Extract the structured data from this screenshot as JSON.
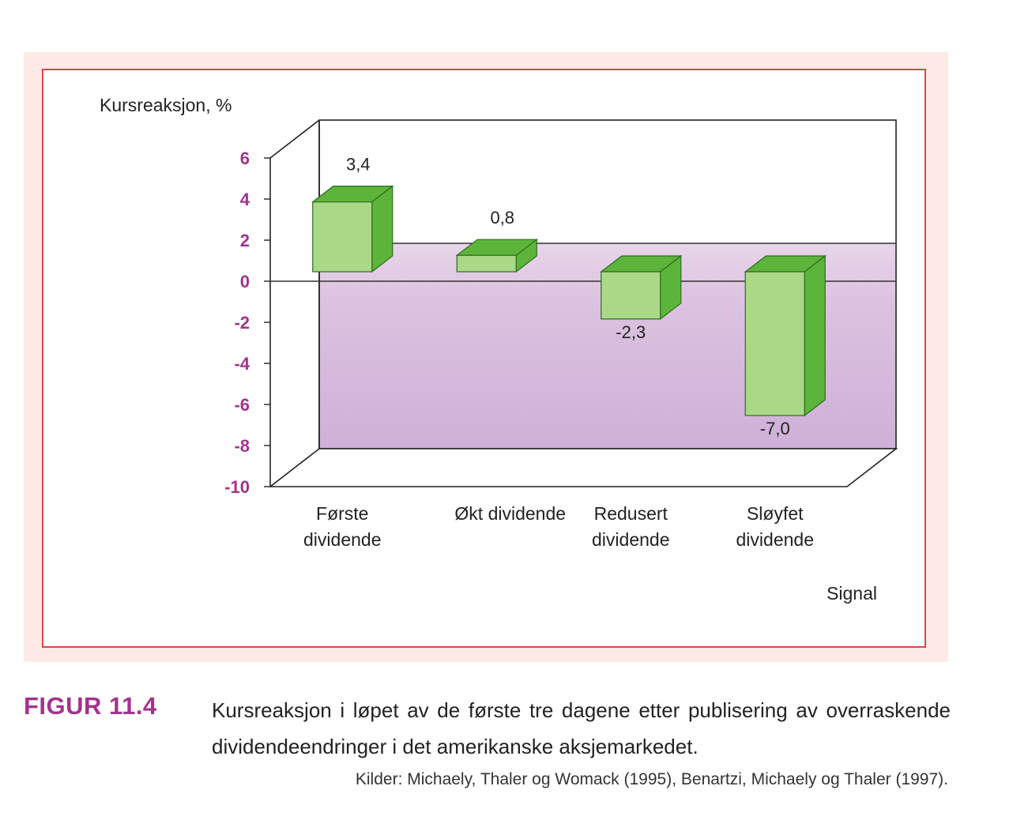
{
  "chart_data": {
    "type": "bar",
    "three_d": true,
    "ylabel": "Kursreaksjon, %",
    "xlabel": "Signal",
    "ylim": [
      -10,
      6
    ],
    "yticks": [
      6,
      4,
      2,
      0,
      -2,
      -4,
      -6,
      -8,
      -10
    ],
    "categories": [
      [
        "Første",
        "dividende"
      ],
      [
        "Økt dividende"
      ],
      [
        "Redusert",
        "dividende"
      ],
      [
        "Sløyfet",
        "dividende"
      ]
    ],
    "values": [
      3.4,
      0.8,
      -2.3,
      -7.0
    ],
    "data_labels": [
      "3,4",
      "0,8",
      "-2,3",
      "-7,0"
    ],
    "colors": {
      "bar_front": "#a9d887",
      "bar_top": "#5cb53a",
      "bar_side": "#5cb53a",
      "tick_labels": "#a3338e",
      "frame": "#d9474b"
    }
  },
  "caption": {
    "label": "FIGUR 11.4",
    "text": "Kursreaksjon i løpet av de første tre dagene etter publisering av overraskende dividendeendringer i det amerikanske aksjemarkedet.",
    "source": "Kilder: Michaely, Thaler og Womack (1995), Benartzi, Michaely og Thaler (1997)."
  }
}
